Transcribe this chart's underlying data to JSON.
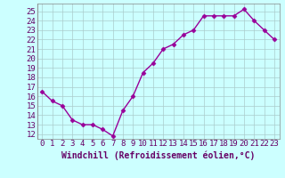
{
  "x": [
    0,
    1,
    2,
    3,
    4,
    5,
    6,
    7,
    8,
    9,
    10,
    11,
    12,
    13,
    14,
    15,
    16,
    17,
    18,
    19,
    20,
    21,
    22,
    23
  ],
  "y": [
    16.5,
    15.5,
    15.0,
    13.5,
    13.0,
    13.0,
    12.5,
    11.8,
    14.5,
    16.0,
    18.5,
    19.5,
    21.0,
    21.5,
    22.5,
    23.0,
    24.5,
    24.5,
    24.5,
    24.5,
    25.2,
    24.0,
    23.0,
    22.0
  ],
  "line_color": "#990099",
  "marker": "D",
  "marker_size": 2.5,
  "bg_color": "#ccffff",
  "grid_color": "#aacccc",
  "xlabel": "Windchill (Refroidissement éolien,°C)",
  "xlabel_fontsize": 7,
  "xlim": [
    -0.5,
    23.5
  ],
  "ylim": [
    11.5,
    25.8
  ],
  "yticks": [
    12,
    13,
    14,
    15,
    16,
    17,
    18,
    19,
    20,
    21,
    22,
    23,
    24,
    25
  ],
  "xticks": [
    0,
    1,
    2,
    3,
    4,
    5,
    6,
    7,
    8,
    9,
    10,
    11,
    12,
    13,
    14,
    15,
    16,
    17,
    18,
    19,
    20,
    21,
    22,
    23
  ],
  "tick_fontsize": 6.5,
  "line_width": 1.0,
  "tick_color": "#660066",
  "label_color": "#660066"
}
